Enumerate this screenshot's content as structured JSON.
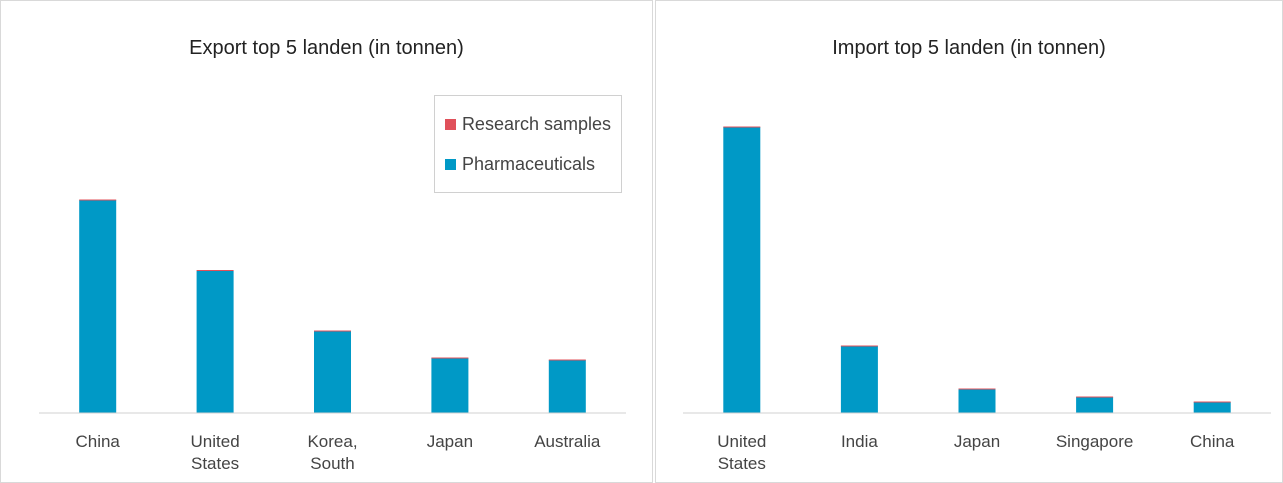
{
  "chart_data": [
    {
      "type": "bar",
      "stacked": true,
      "title": "Export top 5 landen (in tonnen)",
      "categories": [
        "China",
        "United States",
        "Korea, South",
        "Japan",
        "Australia"
      ],
      "series": [
        {
          "name": "Pharmaceuticals",
          "color": "#0099c6",
          "values": [
            213,
            142,
            82,
            55,
            53
          ]
        },
        {
          "name": "Research samples",
          "color": "#e0505a",
          "values": [
            0.5,
            1,
            0.5,
            0.5,
            0.5
          ]
        }
      ],
      "ylim": [
        0,
        300
      ],
      "legend": true,
      "legend_position": "upper right"
    },
    {
      "type": "bar",
      "stacked": true,
      "title": "Import top 5 landen (in tonnen)",
      "categories": [
        "United States",
        "India",
        "Japan",
        "Singapore",
        "China"
      ],
      "series": [
        {
          "name": "Pharmaceuticals",
          "color": "#0099c6",
          "values": [
            286,
            67,
            24,
            16,
            11
          ]
        },
        {
          "name": "Research samples",
          "color": "#e0505a",
          "values": [
            0.5,
            0.5,
            0.5,
            0.5,
            0.5
          ]
        }
      ],
      "ylim": [
        0,
        300
      ],
      "legend": false
    }
  ]
}
